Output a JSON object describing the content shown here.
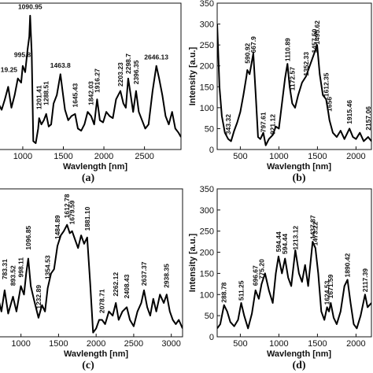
{
  "chart_data": [
    {
      "type": "line",
      "panel": "(a)",
      "xlabel": "Wavlength [nm]",
      "ylabel": "",
      "xlim": [
        700,
        2950
      ],
      "ylim": [
        0,
        350
      ],
      "xticks": [
        "1000",
        "1500",
        "2000",
        "2500"
      ],
      "yticks": [],
      "annotations": [
        {
          "label": "1090.95",
          "x": 1091,
          "y": 330
        },
        {
          "label": "995.8",
          "x": 996,
          "y": 215
        },
        {
          "label": "19.25",
          "x": 830,
          "y": 180
        },
        {
          "label": "4",
          "x": 730,
          "y": 155
        },
        {
          "label": "1463.8",
          "x": 1464,
          "y": 190
        },
        {
          "label": "1201.41",
          "x": 1201,
          "y": 90
        },
        {
          "label": "1288.51",
          "x": 1289,
          "y": 100
        },
        {
          "label": "1645.43",
          "x": 1645,
          "y": 95
        },
        {
          "label": "1842.03",
          "x": 1842,
          "y": 100
        },
        {
          "label": "1916.27",
          "x": 1916,
          "y": 130
        },
        {
          "label": "2203.23",
          "x": 2203,
          "y": 145
        },
        {
          "label": "2298.7",
          "x": 2299,
          "y": 175
        },
        {
          "label": "2396.35",
          "x": 2396,
          "y": 150
        },
        {
          "label": "2646.13",
          "x": 2646,
          "y": 210
        }
      ],
      "series": [
        {
          "x": [
            700,
            740,
            780,
            820,
            860,
            900,
            940,
            980,
            1000,
            1030,
            1060,
            1080,
            1091,
            1110,
            1130,
            1160,
            1190,
            1201,
            1230,
            1260,
            1289,
            1320,
            1350,
            1380,
            1420,
            1464,
            1490,
            1520,
            1560,
            1600,
            1645,
            1680,
            1720,
            1760,
            1800,
            1842,
            1880,
            1916,
            1950,
            1990,
            2030,
            2070,
            2110,
            2150,
            2203,
            2240,
            2270,
            2299,
            2330,
            2360,
            2396,
            2430,
            2470,
            2510,
            2550,
            2600,
            2646,
            2680,
            2720,
            2760,
            2800,
            2840,
            2880,
            2920,
            2950
          ],
          "y": [
            110,
            95,
            120,
            150,
            100,
            130,
            170,
            160,
            200,
            185,
            240,
            270,
            320,
            230,
            20,
            15,
            50,
            75,
            60,
            70,
            85,
            55,
            60,
            110,
            130,
            180,
            140,
            95,
            70,
            80,
            85,
            50,
            45,
            60,
            90,
            80,
            60,
            120,
            70,
            65,
            90,
            80,
            75,
            120,
            140,
            110,
            100,
            170,
            130,
            90,
            140,
            90,
            70,
            50,
            60,
            140,
            200,
            170,
            130,
            80,
            60,
            90,
            50,
            40,
            30
          ]
        }
      ]
    },
    {
      "type": "line",
      "panel": "(b)",
      "xlabel": "Wavlength [nm]",
      "ylabel": "Intensity [a.u.]",
      "xlim": [
        200,
        2200
      ],
      "ylim": [
        0,
        350
      ],
      "xticks": [
        "500",
        "1000",
        "1500",
        "2000"
      ],
      "yticks": [
        "0",
        "50",
        "100",
        "150",
        "200",
        "250",
        "300",
        "350"
      ],
      "annotations": [
        {
          "label": "343.32",
          "x": 343,
          "y": 30
        },
        {
          "label": "590.92",
          "x": 591,
          "y": 200
        },
        {
          "label": "667.9",
          "x": 668,
          "y": 225
        },
        {
          "label": "797.61",
          "x": 798,
          "y": 35
        },
        {
          "label": "921.12",
          "x": 921,
          "y": 30
        },
        {
          "label": "1110.89",
          "x": 1111,
          "y": 205
        },
        {
          "label": "1172.57",
          "x": 1173,
          "y": 135
        },
        {
          "label": "1352.33",
          "x": 1352,
          "y": 170
        },
        {
          "label": "1457.50",
          "x": 1458,
          "y": 225
        },
        {
          "label": "1495.62",
          "x": 1496,
          "y": 245
        },
        {
          "label": "1612.35",
          "x": 1612,
          "y": 120
        },
        {
          "label": "1656",
          "x": 1656,
          "y": 85
        },
        {
          "label": "1915.46",
          "x": 1915,
          "y": 55
        },
        {
          "label": "2157.06",
          "x": 2157,
          "y": 40
        }
      ],
      "series": [
        {
          "x": [
            200,
            230,
            260,
            300,
            343,
            380,
            420,
            460,
            500,
            540,
            580,
            591,
            620,
            668,
            700,
            730,
            760,
            798,
            830,
            870,
            921,
            960,
            1000,
            1040,
            1080,
            1111,
            1140,
            1173,
            1210,
            1250,
            1300,
            1352,
            1400,
            1430,
            1458,
            1496,
            1530,
            1570,
            1612,
            1640,
            1656,
            1700,
            1750,
            1800,
            1850,
            1915,
            1960,
            2000,
            2050,
            2100,
            2157,
            2200
          ],
          "y": [
            300,
            150,
            80,
            40,
            25,
            20,
            45,
            65,
            90,
            130,
            175,
            190,
            180,
            230,
            130,
            30,
            25,
            40,
            10,
            25,
            35,
            55,
            50,
            110,
            170,
            205,
            150,
            110,
            100,
            130,
            160,
            175,
            200,
            215,
            230,
            250,
            180,
            130,
            120,
            90,
            70,
            40,
            30,
            45,
            25,
            50,
            30,
            25,
            40,
            20,
            30,
            20
          ]
        }
      ]
    },
    {
      "type": "line",
      "panel": "(c)",
      "xlabel": "Wavlength [nm]",
      "ylabel": "",
      "xlim": [
        700,
        3150
      ],
      "ylim": [
        0,
        350
      ],
      "xticks": [
        "1000",
        "1500",
        "2000",
        "2500",
        "3000"
      ],
      "yticks": [],
      "annotations": [
        {
          "label": "783.31",
          "x": 783,
          "y": 130
        },
        {
          "label": "893.52",
          "x": 894,
          "y": 115
        },
        {
          "label": "998.11",
          "x": 998,
          "y": 135
        },
        {
          "label": "1096.85",
          "x": 1097,
          "y": 200
        },
        {
          "label": "1232.89",
          "x": 1233,
          "y": 60
        },
        {
          "label": "1354.53",
          "x": 1355,
          "y": 130
        },
        {
          "label": "1484.89",
          "x": 1485,
          "y": 225
        },
        {
          "label": "1612.78",
          "x": 1613,
          "y": 275
        },
        {
          "label": "1679.59",
          "x": 1680,
          "y": 260
        },
        {
          "label": "1881.10",
          "x": 1881,
          "y": 245
        },
        {
          "label": "2078.71",
          "x": 2079,
          "y": 50
        },
        {
          "label": "2262.12",
          "x": 2262,
          "y": 90
        },
        {
          "label": "2408.43",
          "x": 2408,
          "y": 85
        },
        {
          "label": "2637.37",
          "x": 2637,
          "y": 115
        },
        {
          "label": "2938.35",
          "x": 2938,
          "y": 110
        }
      ],
      "series": [
        {
          "x": [
            700,
            740,
            783,
            830,
            894,
            940,
            998,
            1040,
            1070,
            1097,
            1130,
            1170,
            1233,
            1280,
            1320,
            1355,
            1400,
            1440,
            1485,
            1530,
            1570,
            1613,
            1650,
            1680,
            1720,
            1760,
            1800,
            1840,
            1881,
            1920,
            1960,
            2000,
            2040,
            2079,
            2120,
            2170,
            2220,
            2262,
            2300,
            2350,
            2408,
            2450,
            2500,
            2550,
            2600,
            2637,
            2680,
            2720,
            2760,
            2800,
            2850,
            2900,
            2938,
            2980,
            3020,
            3060,
            3100,
            3150
          ],
          "y": [
            90,
            60,
            110,
            55,
            95,
            60,
            120,
            100,
            150,
            185,
            120,
            90,
            45,
            75,
            60,
            115,
            150,
            160,
            215,
            240,
            250,
            265,
            245,
            250,
            230,
            210,
            240,
            220,
            235,
            130,
            10,
            20,
            40,
            40,
            30,
            60,
            50,
            80,
            40,
            60,
            70,
            40,
            25,
            60,
            80,
            110,
            70,
            50,
            90,
            60,
            100,
            80,
            100,
            60,
            40,
            30,
            40,
            20
          ]
        }
      ]
    },
    {
      "type": "line",
      "panel": "(d)",
      "xlabel": "Wavlength [nm]",
      "ylabel": "Intensity [a.u.]",
      "xlim": [
        200,
        2200
      ],
      "ylim": [
        0,
        350
      ],
      "xticks": [
        "500",
        "1000",
        "1500",
        "2000"
      ],
      "yticks": [
        "0",
        "50",
        "100",
        "150",
        "200",
        "250",
        "300",
        "350"
      ],
      "annotations": [
        {
          "label": "288.78",
          "x": 289,
          "y": 75
        },
        {
          "label": "511.25",
          "x": 511,
          "y": 80
        },
        {
          "label": "696.67",
          "x": 697,
          "y": 115
        },
        {
          "label": "775.20",
          "x": 775,
          "y": 130
        },
        {
          "label": "594.44",
          "x": 995,
          "y": 195
        },
        {
          "label": "594.44",
          "x": 1080,
          "y": 190
        },
        {
          "label": "1213.12",
          "x": 1213,
          "y": 200
        },
        {
          "label": "1437.87",
          "x": 1438,
          "y": 225
        },
        {
          "label": "1473.22",
          "x": 1473,
          "y": 210
        },
        {
          "label": "1624.53",
          "x": 1625,
          "y": 70
        },
        {
          "label": "1671.59",
          "x": 1672,
          "y": 85
        },
        {
          "label": "1890.42",
          "x": 1890,
          "y": 135
        },
        {
          "label": "2117.39",
          "x": 2117,
          "y": 100
        }
      ],
      "series": [
        {
          "x": [
            200,
            240,
            289,
            330,
            370,
            420,
            470,
            511,
            550,
            600,
            650,
            697,
            740,
            775,
            820,
            870,
            920,
            960,
            995,
            1040,
            1080,
            1120,
            1160,
            1213,
            1260,
            1300,
            1340,
            1380,
            1438,
            1473,
            1510,
            1550,
            1590,
            1625,
            1650,
            1672,
            1710,
            1750,
            1800,
            1850,
            1890,
            1930,
            1970,
            2010,
            2060,
            2117,
            2150,
            2200
          ],
          "y": [
            20,
            30,
            75,
            60,
            35,
            25,
            40,
            80,
            50,
            20,
            55,
            110,
            90,
            125,
            150,
            110,
            80,
            150,
            190,
            150,
            185,
            140,
            120,
            205,
            150,
            130,
            170,
            120,
            225,
            210,
            150,
            60,
            40,
            70,
            60,
            80,
            45,
            30,
            60,
            120,
            135,
            80,
            30,
            20,
            50,
            100,
            70,
            80
          ]
        }
      ]
    }
  ]
}
